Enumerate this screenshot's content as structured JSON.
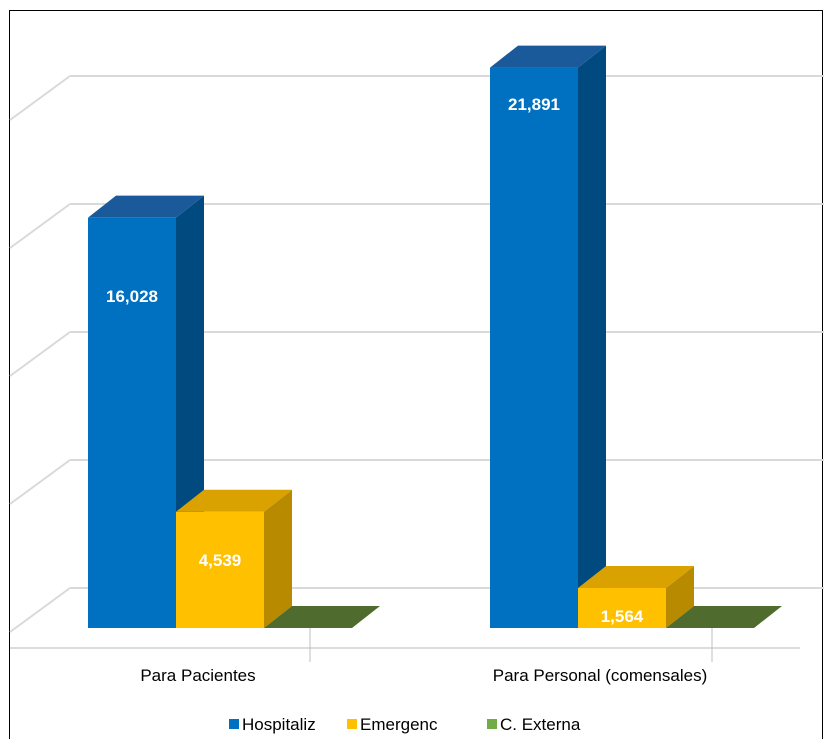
{
  "chart_data": {
    "type": "bar",
    "categories": [
      "Para Pacientes",
      "Para Personal (comensales)"
    ],
    "series": [
      {
        "name": "Hospitaliz",
        "values": [
          16028,
          21891
        ],
        "color": "#0070C0",
        "side_color": "#004A80",
        "top_color": "#1A5A9A"
      },
      {
        "name": "Emergenc",
        "values": [
          4539,
          1564
        ],
        "color": "#FFC000",
        "side_color": "#B88A00",
        "top_color": "#D9A200"
      },
      {
        "name": "C. Externa",
        "values": [
          0,
          0
        ],
        "color": "#70AD47",
        "side_color": "#3E5E26",
        "top_color": "#4F6B2E"
      }
    ],
    "data_labels": [
      [
        "16,028",
        "4,539",
        ""
      ],
      [
        "21,891",
        "1,564",
        ""
      ]
    ],
    "ylim": [
      0,
      25000
    ],
    "grid": true,
    "legend_position": "bottom",
    "three_d": true
  }
}
